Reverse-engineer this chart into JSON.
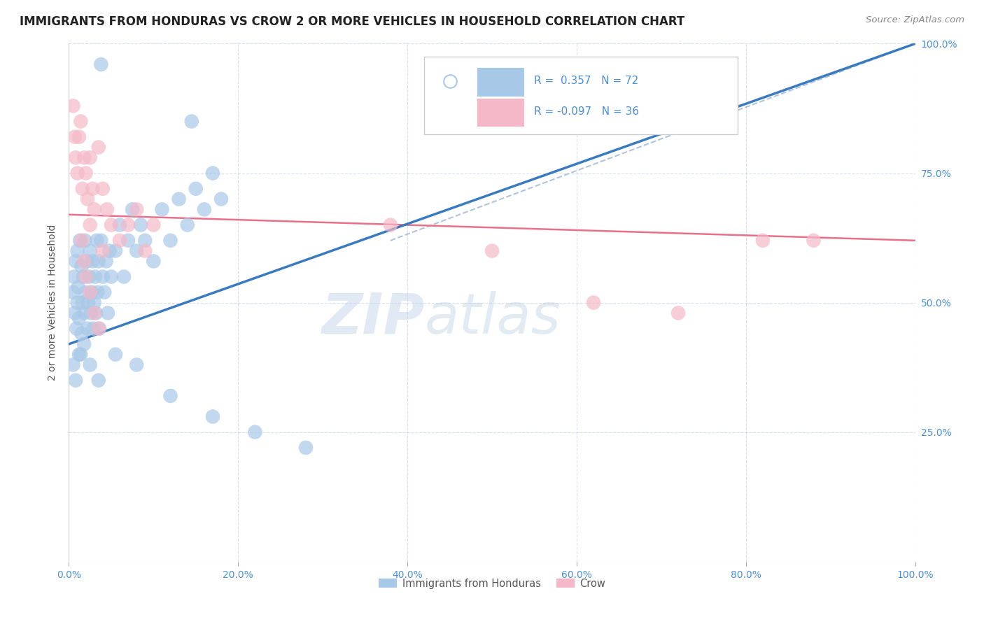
{
  "title": "IMMIGRANTS FROM HONDURAS VS CROW 2 OR MORE VEHICLES IN HOUSEHOLD CORRELATION CHART",
  "source": "Source: ZipAtlas.com",
  "ylabel": "2 or more Vehicles in Household",
  "xlim": [
    0,
    1.0
  ],
  "ylim": [
    0,
    1.0
  ],
  "xtick_labels": [
    "0.0%",
    "20.0%",
    "40.0%",
    "60.0%",
    "80.0%",
    "100.0%"
  ],
  "xtick_positions": [
    0.0,
    0.2,
    0.4,
    0.6,
    0.8,
    1.0
  ],
  "ytick_labels": [
    "25.0%",
    "50.0%",
    "75.0%",
    "100.0%"
  ],
  "ytick_positions": [
    0.25,
    0.5,
    0.75,
    1.0
  ],
  "watermark_zip": "ZIP",
  "watermark_atlas": "atlas",
  "blue_color": "#a8c8e8",
  "pink_color": "#f4b8c8",
  "blue_line_color": "#3a7bbf",
  "pink_line_color": "#e8708a",
  "dash_line_color": "#b0c4de",
  "tick_color": "#4a90d9",
  "blue_scatter_x": [
    0.005,
    0.006,
    0.007,
    0.008,
    0.009,
    0.01,
    0.01,
    0.011,
    0.012,
    0.013,
    0.014,
    0.015,
    0.015,
    0.016,
    0.017,
    0.018,
    0.019,
    0.02,
    0.021,
    0.022,
    0.023,
    0.024,
    0.025,
    0.026,
    0.027,
    0.028,
    0.029,
    0.03,
    0.031,
    0.032,
    0.033,
    0.034,
    0.035,
    0.036,
    0.038,
    0.04,
    0.042,
    0.044,
    0.046,
    0.048,
    0.05,
    0.055,
    0.06,
    0.065,
    0.07,
    0.075,
    0.08,
    0.085,
    0.09,
    0.1,
    0.11,
    0.12,
    0.13,
    0.14,
    0.15,
    0.16,
    0.17,
    0.18,
    0.005,
    0.008,
    0.012,
    0.018,
    0.025,
    0.035,
    0.055,
    0.08,
    0.12,
    0.17,
    0.22,
    0.28,
    0.038,
    0.145
  ],
  "blue_scatter_y": [
    0.52,
    0.55,
    0.48,
    0.58,
    0.45,
    0.6,
    0.5,
    0.53,
    0.47,
    0.62,
    0.4,
    0.57,
    0.44,
    0.5,
    0.55,
    0.48,
    0.62,
    0.52,
    0.58,
    0.45,
    0.5,
    0.55,
    0.6,
    0.48,
    0.52,
    0.58,
    0.45,
    0.5,
    0.55,
    0.48,
    0.62,
    0.52,
    0.58,
    0.45,
    0.62,
    0.55,
    0.52,
    0.58,
    0.48,
    0.6,
    0.55,
    0.6,
    0.65,
    0.55,
    0.62,
    0.68,
    0.6,
    0.65,
    0.62,
    0.58,
    0.68,
    0.62,
    0.7,
    0.65,
    0.72,
    0.68,
    0.75,
    0.7,
    0.38,
    0.35,
    0.4,
    0.42,
    0.38,
    0.35,
    0.4,
    0.38,
    0.32,
    0.28,
    0.25,
    0.22,
    0.96,
    0.85
  ],
  "pink_scatter_x": [
    0.005,
    0.007,
    0.008,
    0.01,
    0.012,
    0.014,
    0.016,
    0.018,
    0.02,
    0.022,
    0.025,
    0.028,
    0.03,
    0.035,
    0.04,
    0.045,
    0.05,
    0.06,
    0.07,
    0.08,
    0.09,
    0.1,
    0.025,
    0.04,
    0.38,
    0.5,
    0.62,
    0.72,
    0.82,
    0.88,
    0.015,
    0.018,
    0.02,
    0.025,
    0.03,
    0.035
  ],
  "pink_scatter_y": [
    0.88,
    0.82,
    0.78,
    0.75,
    0.82,
    0.85,
    0.72,
    0.78,
    0.75,
    0.7,
    0.78,
    0.72,
    0.68,
    0.8,
    0.72,
    0.68,
    0.65,
    0.62,
    0.65,
    0.68,
    0.6,
    0.65,
    0.65,
    0.6,
    0.65,
    0.6,
    0.5,
    0.48,
    0.62,
    0.62,
    0.62,
    0.58,
    0.55,
    0.52,
    0.48,
    0.45
  ],
  "blue_line_x": [
    0.0,
    1.0
  ],
  "blue_line_y": [
    0.42,
    1.0
  ],
  "pink_line_x": [
    0.0,
    1.0
  ],
  "pink_line_y": [
    0.67,
    0.62
  ],
  "dash_line_x": [
    0.38,
    1.0
  ],
  "dash_line_y": [
    0.62,
    1.0
  ],
  "legend_text1": "R =  0.357   N = 72",
  "legend_text2": "R = -0.097   N = 36"
}
